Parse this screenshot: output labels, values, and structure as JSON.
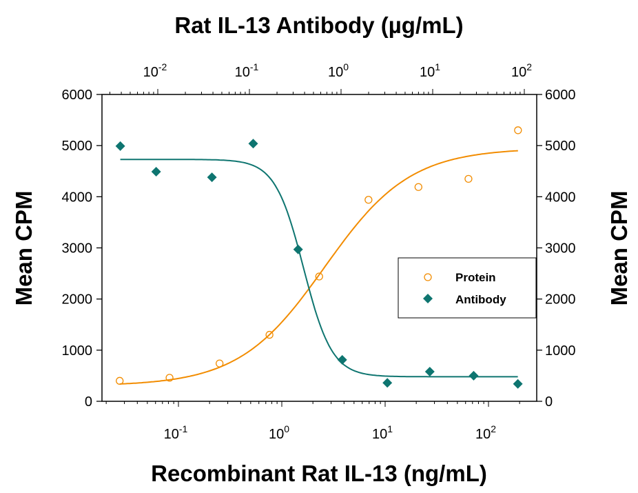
{
  "chart_data": {
    "type": "scatter",
    "title": "Rat IL-13 Antibody (µg/mL)",
    "xlabel": "Recombinant Rat IL-13 (ng/mL)",
    "ylabel_left": "Mean CPM",
    "ylabel_right": "Mean CPM",
    "ylim": [
      0,
      6000
    ],
    "yticks": [
      "0",
      "1000",
      "2000",
      "3000",
      "4000",
      "5000",
      "6000"
    ],
    "x_bottom": {
      "scale": "log",
      "ticks": [
        {
          "base": "10",
          "exp": "-1"
        },
        {
          "base": "10",
          "exp": "0"
        },
        {
          "base": "10",
          "exp": "1"
        },
        {
          "base": "10",
          "exp": "2"
        }
      ]
    },
    "x_top": {
      "scale": "log",
      "ticks": [
        {
          "base": "10",
          "exp": "-2"
        },
        {
          "base": "10",
          "exp": "-1"
        },
        {
          "base": "10",
          "exp": "0"
        },
        {
          "base": "10",
          "exp": "1"
        },
        {
          "base": "10",
          "exp": "2"
        }
      ]
    },
    "grid": false,
    "legend_position": "center-right",
    "series": [
      {
        "name": "Protein",
        "axis": "bottom",
        "marker": "open-circle",
        "color": "#F28C00",
        "x": [
          0.027,
          0.082,
          0.25,
          0.76,
          2.3,
          6.9,
          21,
          64,
          193
        ],
        "y": [
          400,
          460,
          740,
          1300,
          2440,
          3940,
          4190,
          4350,
          5300
        ]
      },
      {
        "name": "Antibody",
        "axis": "top",
        "marker": "filled-diamond",
        "color": "#0E7570",
        "x": [
          0.0039,
          0.0096,
          0.039,
          0.11,
          0.34,
          1.03,
          3.2,
          9.3,
          28,
          85
        ],
        "y": [
          4990,
          4490,
          4380,
          5040,
          2970,
          810,
          360,
          580,
          500,
          340
        ]
      }
    ]
  }
}
